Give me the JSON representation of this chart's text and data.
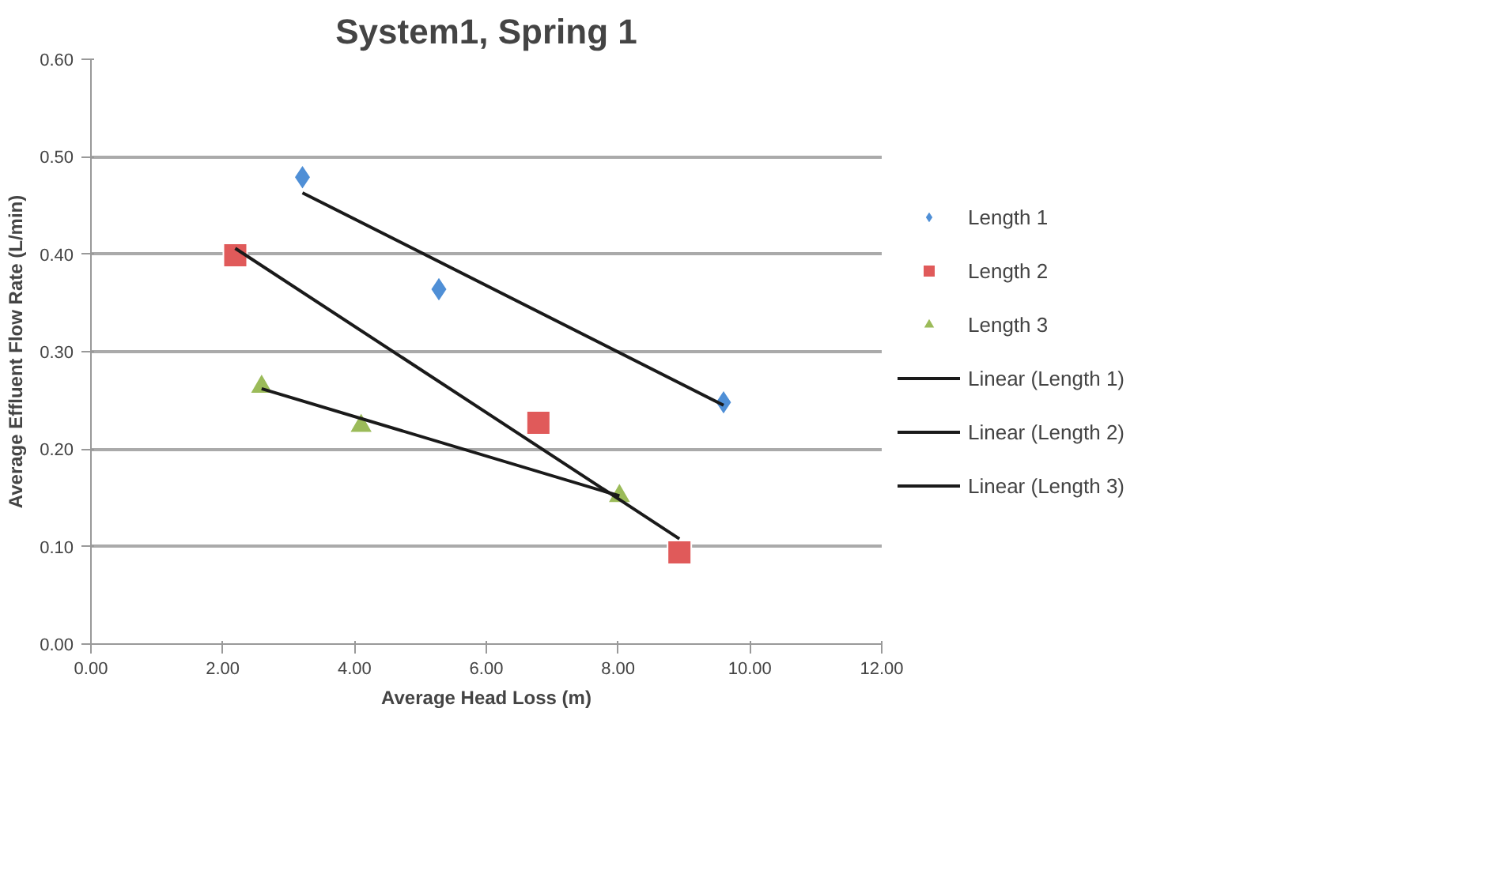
{
  "chart_data": {
    "type": "scatter",
    "title": "System1, Spring 1",
    "xlabel": "Average Head Loss (m)",
    "ylabel": "Average Effluent Flow Rate (L/min)",
    "xlim": [
      0,
      12
    ],
    "xticks": [
      {
        "value": 0,
        "label": "0.00"
      },
      {
        "value": 2,
        "label": "2.00"
      },
      {
        "value": 4,
        "label": "4.00"
      },
      {
        "value": 6,
        "label": "6.00"
      },
      {
        "value": 8,
        "label": "8.00"
      },
      {
        "value": 10,
        "label": "10.00"
      },
      {
        "value": 12,
        "label": "12.00"
      }
    ],
    "ylim": [
      0,
      0.6
    ],
    "yticks": [
      {
        "value": 0,
        "label": "0.00"
      },
      {
        "value": 0.1,
        "label": "0.10"
      },
      {
        "value": 0.2,
        "label": "0.20"
      },
      {
        "value": 0.3,
        "label": "0.30"
      },
      {
        "value": 0.4,
        "label": "0.40"
      },
      {
        "value": 0.5,
        "label": "0.50"
      },
      {
        "value": 0.6,
        "label": "0.60"
      }
    ],
    "grid": "y",
    "legend": "right",
    "series": [
      {
        "name": "Length 1",
        "marker": "diamond",
        "color": "#4f8fd6",
        "x": [
          3.21,
          5.28,
          9.6
        ],
        "values": [
          0.479,
          0.364,
          0.248
        ]
      },
      {
        "name": "Length 2",
        "marker": "square",
        "color": "#e05a5a",
        "x": [
          2.19,
          6.79,
          8.93
        ],
        "values": [
          0.399,
          0.227,
          0.094
        ]
      },
      {
        "name": "Length 3",
        "marker": "triangle",
        "color": "#9bbb59",
        "x": [
          2.59,
          4.1,
          8.02
        ],
        "values": [
          0.264,
          0.224,
          0.152
        ]
      },
      {
        "name": "Linear (Length 1)",
        "type": "line",
        "marker": "none",
        "color": "#1a1a1a",
        "x": [
          3.21,
          9.6
        ],
        "values": [
          0.463,
          0.245
        ]
      },
      {
        "name": "Linear (Length 2)",
        "type": "line",
        "marker": "none",
        "color": "#1a1a1a",
        "x": [
          2.19,
          8.93
        ],
        "values": [
          0.406,
          0.108
        ]
      },
      {
        "name": "Linear (Length 3)",
        "type": "line",
        "marker": "none",
        "color": "#1a1a1a",
        "x": [
          2.59,
          8.02
        ],
        "values": [
          0.262,
          0.152
        ]
      }
    ]
  }
}
